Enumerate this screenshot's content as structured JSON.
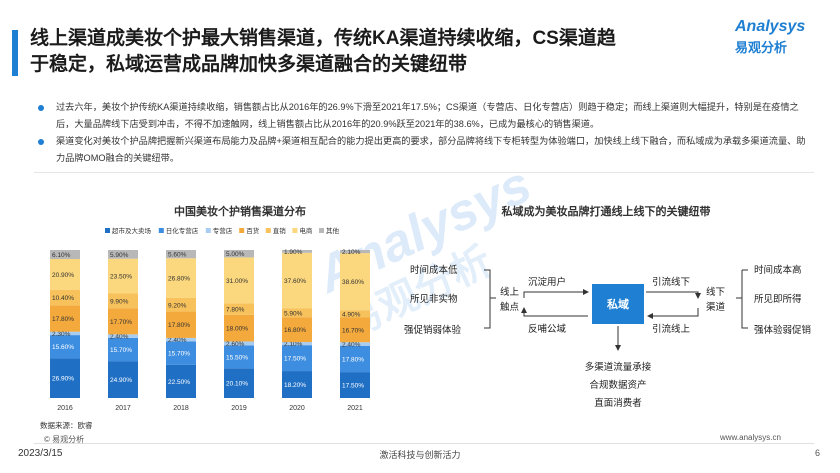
{
  "header": {
    "title": "线上渠道成美妆个护最大销售渠道，传统KA渠道持续收缩，CS渠道趋于稳定，私域运营成品牌加快多渠道融合的关键纽带",
    "logo_top": "Analysys",
    "logo_bottom": "易观分析"
  },
  "bullets": [
    "过去六年，美妆个护传统KA渠道持续收缩，销售额占比从2016年的26.9%下滑至2021年17.5%；CS渠道（专营店、日化专营店）则趋于稳定；而线上渠道则大幅提升，特别是在疫情之后，大量品牌线下店受到冲击，不得不加速触网，线上销售额占比从2016年的20.9%跃至2021年的38.6%，已成为最核心的销售渠道。",
    "渠道变化对美妆个护品牌把握新兴渠道布局能力及品牌+渠道相互配合的能力提出更高的要求，部分品牌将线下专柜转型为体验端口，加快线上线下融合，而私域成为承载多渠道流量、助力品牌OMO融合的关键纽带。"
  ],
  "chart_data": {
    "type": "bar",
    "stacked": true,
    "percent": true,
    "title": "中国美妆个护销售渠道分布",
    "categories": [
      "2016",
      "2017",
      "2018",
      "2019",
      "2020",
      "2021"
    ],
    "series": [
      {
        "name": "超市及大卖场",
        "color": "#1f6fc5",
        "values": [
          26.9,
          24.9,
          22.5,
          20.1,
          18.2,
          17.5
        ]
      },
      {
        "name": "日化专营店",
        "color": "#3d8ee0",
        "values": [
          15.6,
          15.7,
          15.7,
          15.5,
          17.5,
          17.8
        ]
      },
      {
        "name": "专营店",
        "color": "#a9cdf0",
        "values": [
          2.3,
          2.4,
          2.4,
          2.6,
          2.1,
          2.4
        ]
      },
      {
        "name": "百货",
        "color": "#f3a93c",
        "values": [
          17.8,
          17.7,
          17.8,
          18.0,
          16.8,
          16.7
        ]
      },
      {
        "name": "直销",
        "color": "#f7c15b",
        "values": [
          10.4,
          9.9,
          9.2,
          7.8,
          5.9,
          4.9
        ]
      },
      {
        "name": "电商",
        "color": "#fbd77d",
        "values": [
          20.9,
          23.5,
          26.8,
          31.0,
          37.6,
          38.6
        ]
      },
      {
        "name": "其他",
        "color": "#b8b8b8",
        "values": [
          6.1,
          5.9,
          5.6,
          5.0,
          1.9,
          2.1
        ]
      }
    ],
    "value_labels": [
      [
        "26.90%",
        "15.60%",
        "2.30%",
        "17.80%",
        "10.40%",
        "20.90%",
        "6.10%"
      ],
      [
        "24.90%",
        "15.70%",
        "2.40%",
        "17.70%",
        "9.90%",
        "23.50%",
        "5.90%"
      ],
      [
        "22.50%",
        "15.70%",
        "2.40%",
        "17.80%",
        "9.20%",
        "26.80%",
        "5.60%"
      ],
      [
        "20.10%",
        "15.50%",
        "2.60%",
        "18.00%",
        "7.80%",
        "31.00%",
        "5.00%"
      ],
      [
        "18.20%",
        "17.50%",
        "2.10%",
        "16.80%",
        "5.90%",
        "37.60%",
        "1.90%"
      ],
      [
        "17.50%",
        "17.80%",
        "2.40%",
        "16.70%",
        "4.90%",
        "38.60%",
        "2.10%"
      ]
    ],
    "legend_position": "top",
    "ylim": [
      0,
      100
    ]
  },
  "diagram": {
    "title": "私域成为美妆品牌打通线上线下的关键纽带",
    "left_items": [
      "时间成本低",
      "所见非实物",
      "强促销弱体验"
    ],
    "left_node": "线上触点",
    "top_left": "沉淀用户",
    "bottom_left": "反哺公域",
    "center": "私域",
    "top_right": "引流线下",
    "bottom_right": "引流线上",
    "right_node": "线下渠道",
    "right_items": [
      "时间成本高",
      "所见即所得",
      "强体验弱促销"
    ],
    "bottom_items": [
      "多渠道流量承接",
      "合规数据资产",
      "直面消费者"
    ]
  },
  "footer": {
    "source": "数据来源：欧睿",
    "copyright": "© 易观分析",
    "date": "2023/3/15",
    "center": "激活科技与创新活力",
    "url": "www.analysys.cn",
    "page": "6"
  },
  "watermark": {
    "line1": "Analysys",
    "line2": "易观分析"
  }
}
